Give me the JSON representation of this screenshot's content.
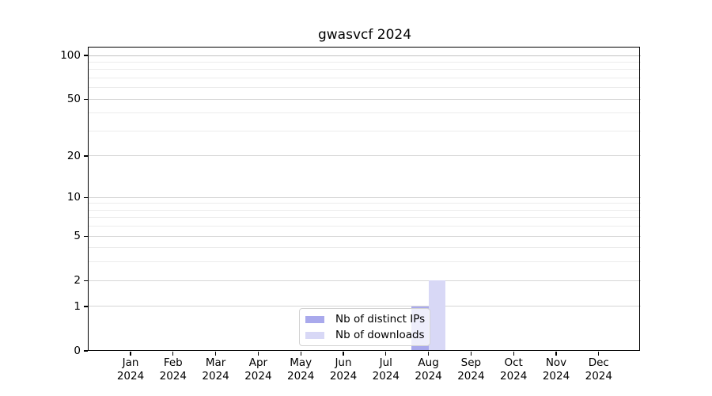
{
  "chart_data": {
    "type": "bar",
    "title": "gwasvcf 2024",
    "categories": [
      "Jan",
      "Feb",
      "Mar",
      "Apr",
      "May",
      "Jun",
      "Jul",
      "Aug",
      "Sep",
      "Oct",
      "Nov",
      "Dec"
    ],
    "year": "2024",
    "series": [
      {
        "name": "Nb of distinct IPs",
        "color": "#a9a9ec",
        "values": [
          0,
          0,
          0,
          0,
          0,
          0,
          0,
          1,
          0,
          0,
          0,
          0
        ]
      },
      {
        "name": "Nb of downloads",
        "color": "#d8d8f6",
        "values": [
          0,
          0,
          0,
          0,
          0,
          0,
          0,
          2,
          0,
          0,
          0,
          0
        ]
      }
    ],
    "y_axis": {
      "scale": "log1p",
      "ticks": [
        0,
        1,
        2,
        5,
        10,
        20,
        50,
        100
      ],
      "minor_gridlines": [
        3,
        4,
        6,
        7,
        8,
        9,
        30,
        40,
        60,
        70,
        80,
        90
      ],
      "range": [
        0,
        113
      ]
    },
    "xlabel": "",
    "ylabel": "",
    "grid": true,
    "legend": {
      "position": "lower center"
    },
    "style": {
      "grid_major": "#d6d6d6",
      "grid_major_top": "#c3c3c3",
      "grid_minor": "#ececec",
      "axis_color": "#000000",
      "legend_border": "#d2d2d2",
      "legend_bg": "rgba(255,255,255,0.8)"
    }
  }
}
